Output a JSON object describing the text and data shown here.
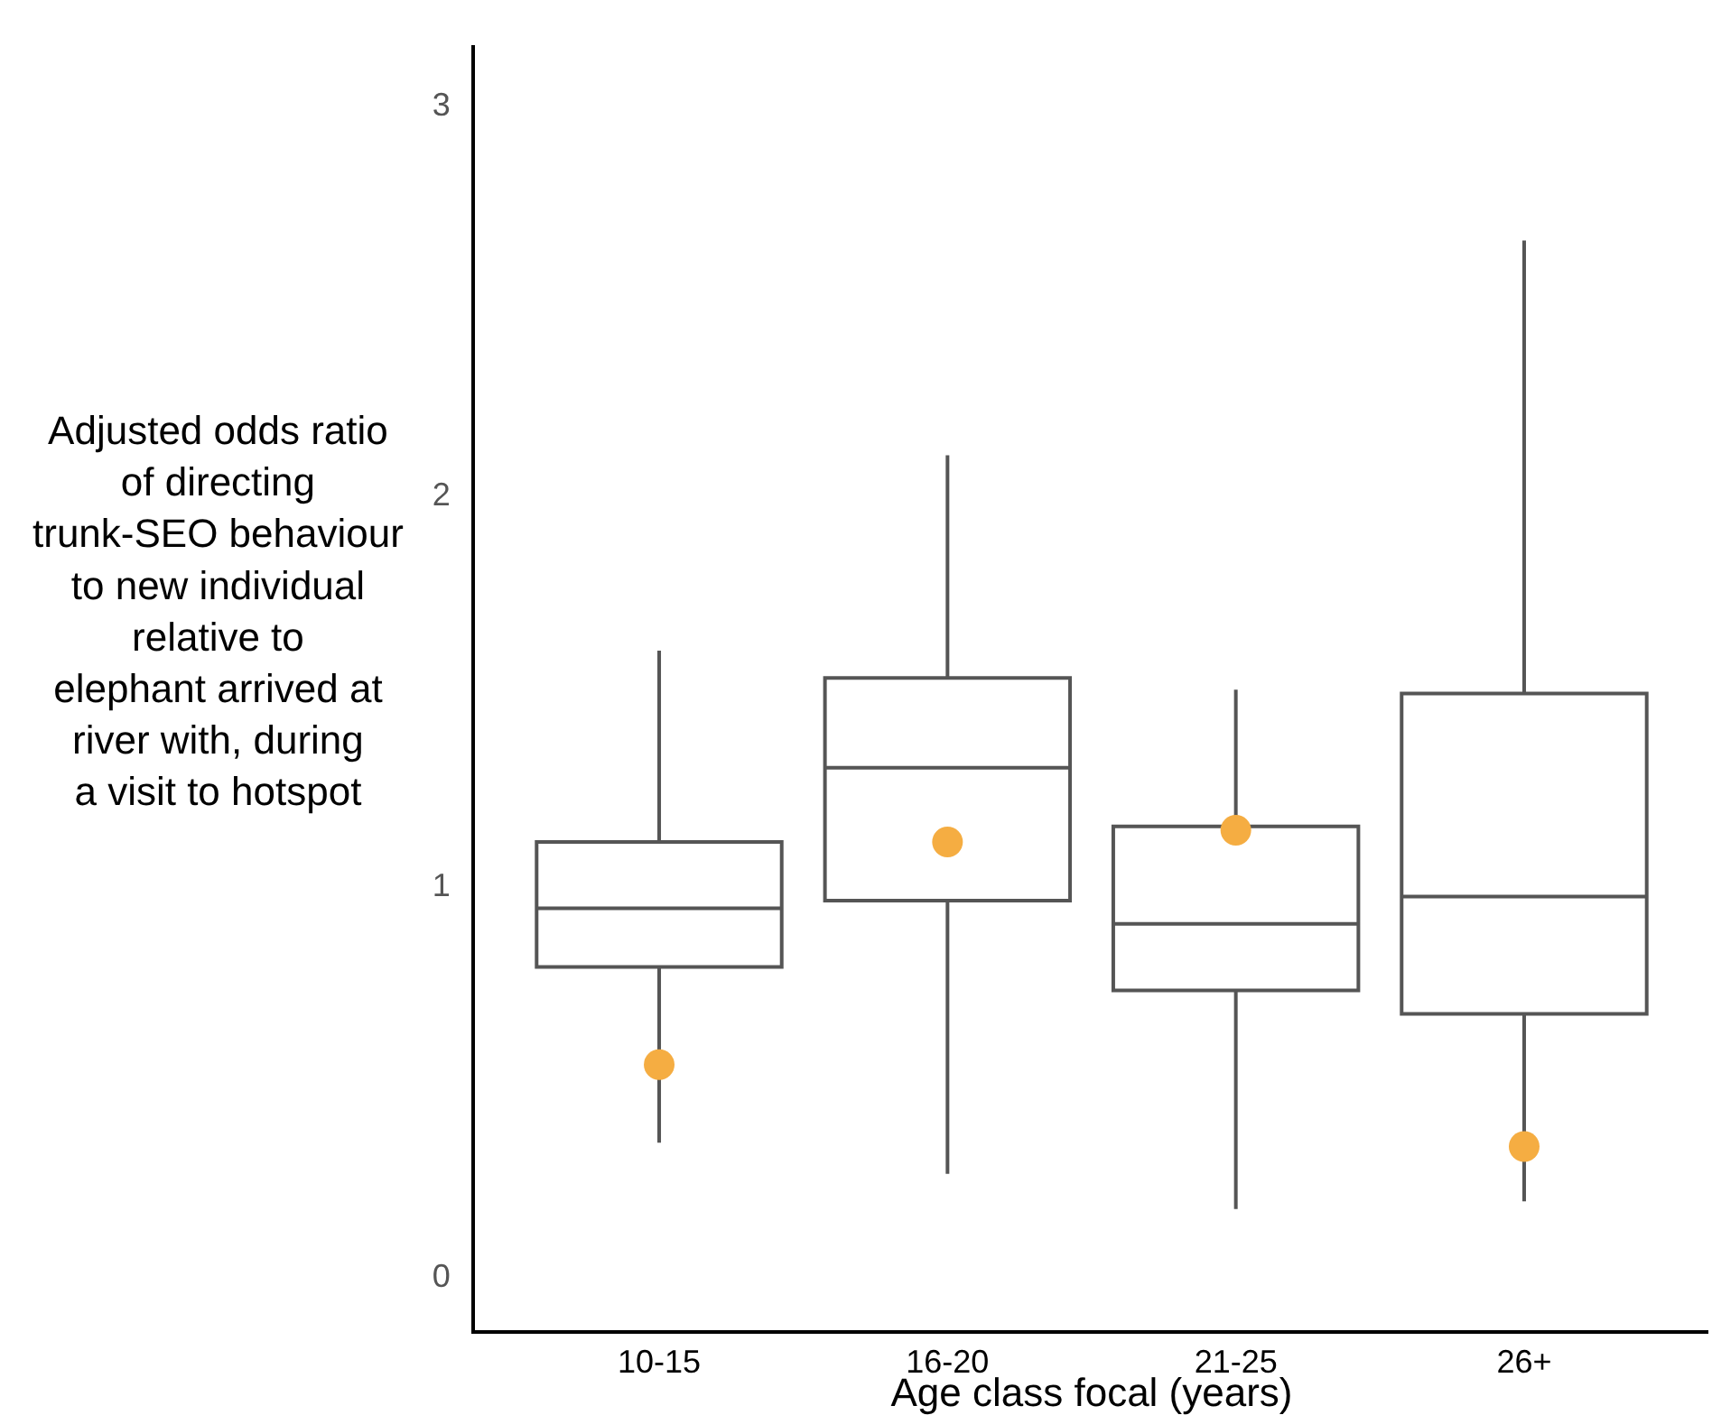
{
  "chart_data": {
    "type": "box",
    "xlabel": "Age class focal (years)",
    "ylabel": "Adjusted odds ratio of directing trunk-SEO behaviour to new individual relative to elephant arrived at river with, during a visit to hotspot",
    "categories": [
      "10-15",
      "16-20",
      "21-25",
      "26+"
    ],
    "boxes": [
      {
        "low": 0.34,
        "q1": 0.79,
        "median": 0.94,
        "q3": 1.11,
        "high": 1.6
      },
      {
        "low": 0.26,
        "q1": 0.96,
        "median": 1.3,
        "q3": 1.53,
        "high": 2.1
      },
      {
        "low": 0.17,
        "q1": 0.73,
        "median": 0.9,
        "q3": 1.15,
        "high": 1.5
      },
      {
        "low": 0.19,
        "q1": 0.67,
        "median": 0.97,
        "q3": 1.49,
        "high": 2.65
      }
    ],
    "color": "#555555",
    "series": [
      {
        "type": "scatter",
        "x": [
          "10-15",
          "16-20",
          "21-25",
          "26+"
        ],
        "values": [
          0.54,
          1.11,
          1.14,
          0.33
        ],
        "color": "#f5ad42",
        "marker": "circle"
      }
    ],
    "ylim": [
      -0.14,
      3.15
    ],
    "yticks": [
      0,
      1,
      2,
      3
    ]
  }
}
